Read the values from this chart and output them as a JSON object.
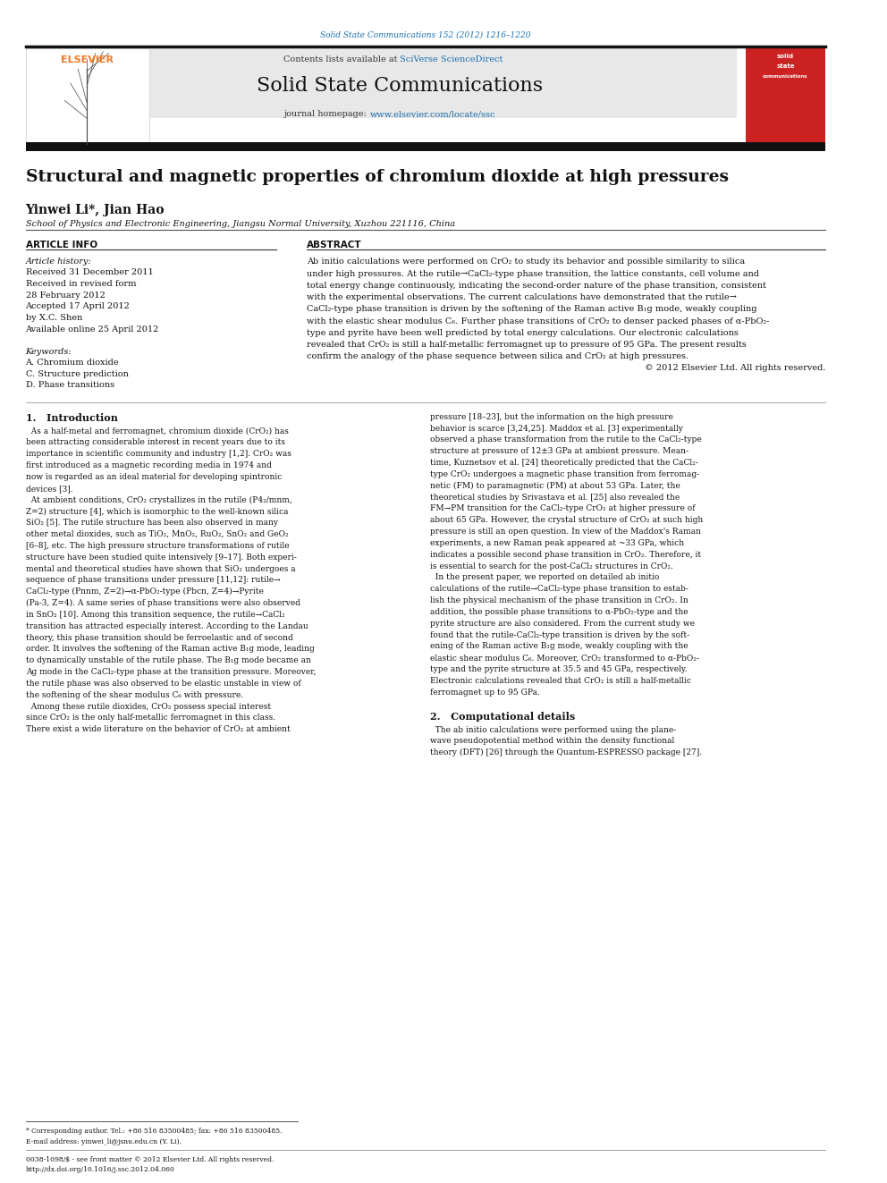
{
  "page_width": 9.92,
  "page_height": 13.23,
  "background_color": "#ffffff",
  "header_bg_color": "#e8e8e8",
  "journal_info_top": "Solid State Communications 152 (2012) 1216–1220",
  "journal_name": "Solid State Communications",
  "paper_title": "Structural and magnetic properties of chromium dioxide at high pressures",
  "authors": "Yinwei Li*, Jian Hao",
  "affiliation": "School of Physics and Electronic Engineering, Jiangsu Normal University, Xuzhou 221116, China",
  "article_info_header": "ARTICLE INFO",
  "abstract_header": "ABSTRACT",
  "footnote_star": "* Corresponding author. Tel.: +86 516 83500485; fax: +86 516 83500485.",
  "footnote_email": "E-mail address: yinwei_li@jsnu.edu.cn (Y. Li).",
  "bottom_bar1": "0038-1098/$ - see front matter © 2012 Elsevier Ltd. All rights reserved.",
  "bottom_bar2": "http://dx.doi.org/10.1016/j.ssc.2012.04.060",
  "elsevier_orange": "#f47920",
  "link_blue": "#1a6faf",
  "hist_lines": [
    "Article history:",
    "Received 31 December 2011",
    "Received in revised form",
    "28 February 2012",
    "Accepted 17 April 2012",
    "by X.C. Shen",
    "Available online 25 April 2012"
  ],
  "kw_lines": [
    "Keywords:",
    "A. Chromium dioxide",
    "C. Structure prediction",
    "D. Phase transitions"
  ],
  "abstract_lines": [
    "Ab initio calculations were performed on CrO₂ to study its behavior and possible similarity to silica",
    "under high pressures. At the rutile→CaCl₂-type phase transition, the lattice constants, cell volume and",
    "total energy change continuously, indicating the second-order nature of the phase transition, consistent",
    "with the experimental observations. The current calculations have demonstrated that the rutile→",
    "CaCl₂-type phase transition is driven by the softening of the Raman active B₁g mode, weakly coupling",
    "with the elastic shear modulus C₆. Further phase transitions of CrO₂ to denser packed phases of α-PbO₂-",
    "type and pyrite have been well predicted by total energy calculations. Our electronic calculations",
    "revealed that CrO₂ is still a half-metallic ferromagnet up to pressure of 95 GPa. The present results",
    "confirm the analogy of the phase sequence between silica and CrO₂ at high pressures.",
    "© 2012 Elsevier Ltd. All rights reserved."
  ],
  "left_col_lines": [
    "  As a half-metal and ferromagnet, chromium dioxide (CrO₂) has",
    "been attracting considerable interest in recent years due to its",
    "importance in scientific community and industry [1,2]. CrO₂ was",
    "first introduced as a magnetic recording media in 1974 and",
    "now is regarded as an ideal material for developing spintronic",
    "devices [3].",
    "  At ambient conditions, CrO₂ crystallizes in the rutile (P4₂/mnm,",
    "Z=2) structure [4], which is isomorphic to the well-known silica",
    "SiO₂ [5]. The rutile structure has been also observed in many",
    "other metal dioxides, such as TiO₂, MnO₂, RuO₂, SnO₂ and GeO₂",
    "[6–8], etc. The high pressure structure transformations of rutile",
    "structure have been studied quite intensively [9–17]. Both experi-",
    "mental and theoretical studies have shown that SiO₂ undergoes a",
    "sequence of phase transitions under pressure [11,12]: rutile→",
    "CaCl₂-type (Pnnm, Z=2)→α-PbO₂-type (Pbcn, Z=4)→Pyrite",
    "(Pa-3, Z=4). A same series of phase transitions were also observed",
    "in SnO₂ [10]. Among this transition sequence, the rutile→CaCl₂",
    "transition has attracted especially interest. According to the Landau",
    "theory, this phase transition should be ferroelastic and of second",
    "order. It involves the softening of the Raman active B₁g mode, leading",
    "to dynamically unstable of the rutile phase. The B₁g mode became an",
    "Ag mode in the CaCl₂-type phase at the transition pressure. Moreover,",
    "the rutile phase was also observed to be elastic unstable in view of",
    "the softening of the shear modulus C₆ with pressure.",
    "  Among these rutile dioxides, CrO₂ possess special interest",
    "since CrO₂ is the only half-metallic ferromagnet in this class.",
    "There exist a wide literature on the behavior of CrO₂ at ambient"
  ],
  "right_col_lines": [
    "pressure [18–23], but the information on the high pressure",
    "behavior is scarce [3,24,25]. Maddox et al. [3] experimentally",
    "observed a phase transformation from the rutile to the CaCl₂-type",
    "structure at pressure of 12±3 GPa at ambient pressure. Mean-",
    "time, Kuznetsov et al. [24] theoretically predicted that the CaCl₂-",
    "type CrO₂ undergoes a magnetic phase transition from ferromag-",
    "netic (FM) to paramagnetic (PM) at about 53 GPa. Later, the",
    "theoretical studies by Srivastava et al. [25] also revealed the",
    "FM→PM transition for the CaCl₂-type CrO₂ at higher pressure of",
    "about 65 GPa. However, the crystal structure of CrO₂ at such high",
    "pressure is still an open question. In view of the Maddox's Raman",
    "experiments, a new Raman peak appeared at ~33 GPa, which",
    "indicates a possible second phase transition in CrO₂. Therefore, it",
    "is essential to search for the post-CaCl₂ structures in CrO₂.",
    "  In the present paper, we reported on detailed ab initio",
    "calculations of the rutile→CaCl₂-type phase transition to estab-",
    "lish the physical mechanism of the phase transition in CrO₂. In",
    "addition, the possible phase transitions to α-PbO₂-type and the",
    "pyrite structure are also considered. From the current study we",
    "found that the rutile-CaCl₂-type transition is driven by the soft-",
    "ening of the Raman active B₁g mode, weakly coupling with the",
    "elastic shear modulus C₆. Moreover, CrO₂ transformed to α-PbO₂-",
    "type and the pyrite structure at 35.5 and 45 GPa, respectively.",
    "Electronic calculations revealed that CrO₂ is still a half-metallic",
    "ferromagnet up to 95 GPa."
  ],
  "sec2_lines": [
    "  The ab initio calculations were performed using the plane-",
    "wave pseudopotential method within the density functional",
    "theory (DFT) [26] through the Quantum-ESPRESSO package [27]."
  ]
}
